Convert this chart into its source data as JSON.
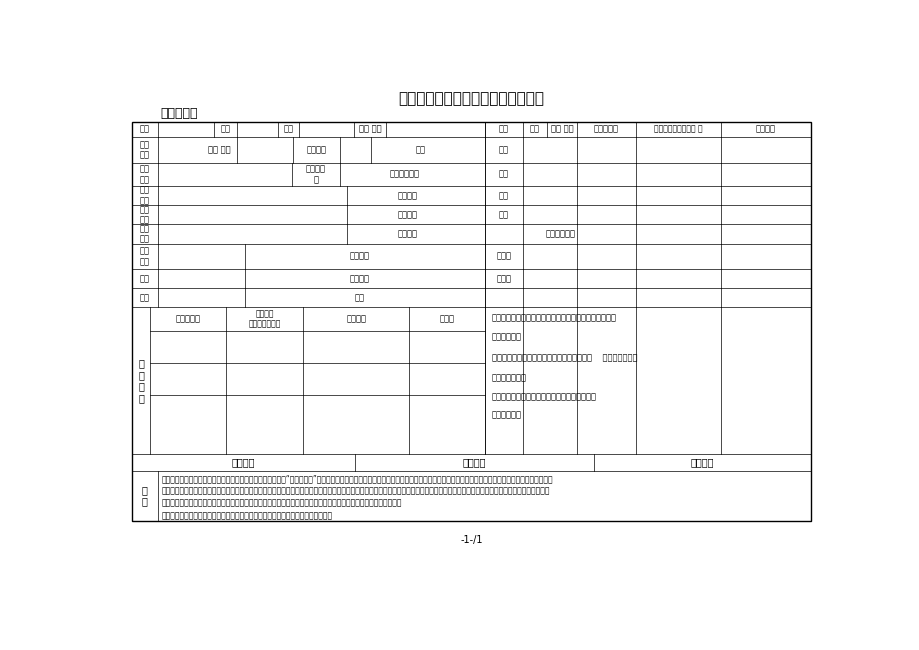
{
  "title": "上海电力学院年应征对象情况登记表",
  "subtitle": "二级学院：",
  "page_label": "-1-/1",
  "background": "#ffffff",
  "border_color": "#000000",
  "font_color": "#000000"
}
